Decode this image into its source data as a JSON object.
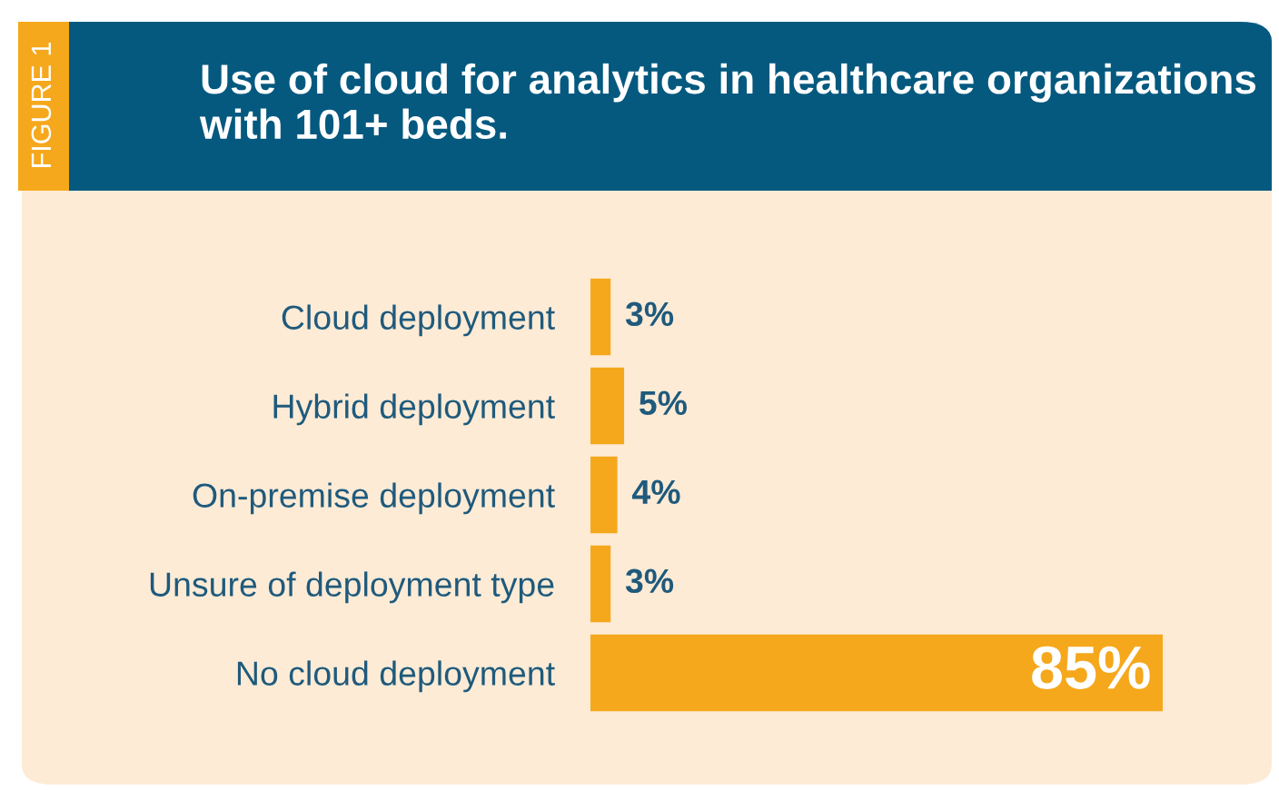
{
  "chart_data": {
    "type": "bar",
    "orientation": "horizontal",
    "title": "Use of cloud for analytics in healthcare organizations with 101+ beds.",
    "annotations": [
      "FIGURE 1"
    ],
    "categories": [
      "Cloud deployment",
      "Hybrid deployment",
      "On-premise deployment",
      "Unsure of deployment type",
      "No cloud deployment"
    ],
    "values": [
      3,
      5,
      4,
      3,
      85
    ],
    "value_labels": [
      "3%",
      "5%",
      "4%",
      "3%",
      "85%"
    ],
    "color": "#f5a81c",
    "grid": false,
    "legend": false
  }
}
